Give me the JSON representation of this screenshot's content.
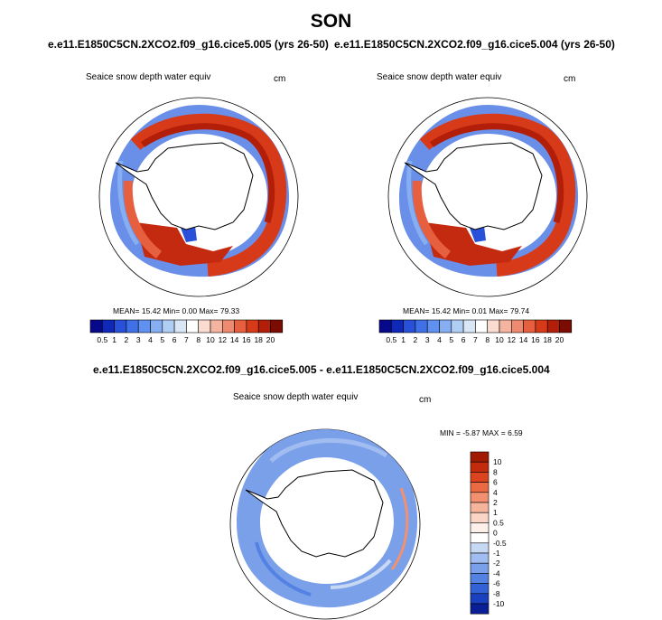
{
  "title": "SON",
  "panels": [
    {
      "subtitle": "e.e11.E1850C5CN.2XCO2.f09_g16.cice5.005 (yrs 26-50)",
      "var_label": "Seaice snow depth water equiv",
      "units": "cm",
      "stats": "MEAN=  15.42  Min=   0.00  Max=  79.33"
    },
    {
      "subtitle": "e.e11.E1850C5CN.2XCO2.f09_g16.cice5.004 (yrs 26-50)",
      "var_label": "Seaice snow depth water equiv",
      "units": "cm",
      "stats": "MEAN=  15.42  Min=   0.01  Max=  79.74"
    }
  ],
  "colorbar_horizontal": {
    "labels": [
      "0.5",
      "1",
      "2",
      "3",
      "4",
      "5",
      "6",
      "7",
      "8",
      "10",
      "12",
      "14",
      "16",
      "18",
      "20"
    ],
    "colors": [
      "#08088a",
      "#1028b8",
      "#2850d8",
      "#4070e8",
      "#6090f0",
      "#86aef2",
      "#b0cef4",
      "#d8e6f6",
      "#ffffff",
      "#fadcd0",
      "#f4b4a0",
      "#ee8a70",
      "#e66040",
      "#d63a18",
      "#b21e08",
      "#7a0c02"
    ]
  },
  "difference": {
    "subtitle": "e.e11.E1850C5CN.2XCO2.f09_g16.cice5.005 - e.e11.E1850C5CN.2XCO2.f09_g16.cice5.004",
    "var_label": "Seaice snow depth water equiv",
    "units": "cm",
    "stats": "MIN =  -5.87 MAX =   6.59",
    "colorbar": {
      "labels": [
        "10",
        "8",
        "6",
        "4",
        "2",
        "1",
        "0.5",
        "0",
        "-0.5",
        "-1",
        "-2",
        "-4",
        "-6",
        "-8",
        "-10"
      ],
      "colors": [
        "#a01a04",
        "#c22c0c",
        "#dc4420",
        "#ea6a44",
        "#f29070",
        "#f6b49c",
        "#fad4c4",
        "#fdf0ea",
        "#ffffff",
        "#c6d8f4",
        "#a0bcf0",
        "#7aa0ea",
        "#5482e2",
        "#3262d6",
        "#1a40c0",
        "#0a1e96"
      ]
    }
  }
}
